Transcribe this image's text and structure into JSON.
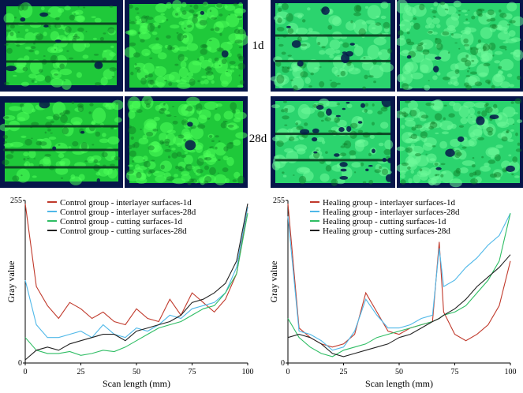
{
  "row_labels": [
    "1d",
    "28d"
  ],
  "photo_colors": {
    "background": "#06164a",
    "surface": "#1fc93a",
    "surface_bright": "#4dff5a",
    "surface_dark": "#0d7a24",
    "healing_surface": "#2bd46e",
    "healing_bright": "#6ffa9a",
    "defect": "#0a3a1f"
  },
  "chart_data": [
    {
      "type": "line",
      "panel": "control",
      "xlabel": "Scan length (mm)",
      "ylabel": "Gray value",
      "xlim": [
        0,
        100
      ],
      "ylim": [
        0,
        255
      ],
      "x_ticks": [
        "0",
        "25",
        "50",
        "75",
        "100"
      ],
      "y_ticks": [
        "0",
        "255"
      ],
      "legend_position": "top-left",
      "x": [
        0,
        5,
        10,
        15,
        20,
        25,
        30,
        35,
        40,
        45,
        50,
        55,
        60,
        65,
        70,
        75,
        80,
        85,
        90,
        95,
        100
      ],
      "series": [
        {
          "name": "Control group - interlayer surfaces-1d",
          "color": "#c0392b",
          "values": [
            250,
            120,
            90,
            70,
            95,
            85,
            70,
            80,
            65,
            60,
            85,
            70,
            65,
            100,
            75,
            110,
            95,
            80,
            100,
            140,
            245
          ]
        },
        {
          "name": "Control group - interlayer surfaces-28d",
          "color": "#4fb8e8",
          "values": [
            130,
            60,
            40,
            40,
            45,
            50,
            40,
            60,
            45,
            40,
            55,
            50,
            60,
            75,
            70,
            85,
            90,
            95,
            110,
            150,
            245
          ]
        },
        {
          "name": "Control group - cutting surfaces-1d",
          "color": "#2ebd63",
          "values": [
            40,
            20,
            15,
            15,
            18,
            12,
            15,
            20,
            18,
            25,
            35,
            45,
            55,
            60,
            65,
            75,
            85,
            90,
            110,
            140,
            235
          ]
        },
        {
          "name": "Control group - cutting surfaces-28d",
          "color": "#222222",
          "values": [
            5,
            20,
            25,
            20,
            30,
            35,
            40,
            45,
            45,
            35,
            50,
            55,
            60,
            65,
            75,
            95,
            100,
            110,
            125,
            160,
            250
          ]
        }
      ]
    },
    {
      "type": "line",
      "panel": "healing",
      "xlabel": "Scan length (mm)",
      "ylabel": "Gray value",
      "xlim": [
        0,
        100
      ],
      "ylim": [
        0,
        255
      ],
      "x_ticks": [
        "0",
        "25",
        "50",
        "75",
        "100"
      ],
      "y_ticks": [
        "0",
        "255"
      ],
      "legend_position": "top-left",
      "x": [
        0,
        5,
        10,
        15,
        20,
        25,
        30,
        35,
        40,
        45,
        50,
        55,
        60,
        65,
        68,
        70,
        75,
        80,
        85,
        90,
        95,
        100
      ],
      "series": [
        {
          "name": "Healing group - interlayer surfaces-1d",
          "color": "#c0392b",
          "values": [
            250,
            55,
            40,
            30,
            25,
            30,
            45,
            110,
            80,
            50,
            45,
            55,
            60,
            65,
            190,
            80,
            45,
            35,
            45,
            60,
            90,
            160
          ]
        },
        {
          "name": "Healing group - interlayer surfaces-28d",
          "color": "#4fb8e8",
          "values": [
            230,
            50,
            45,
            35,
            20,
            25,
            50,
            100,
            75,
            55,
            55,
            60,
            70,
            75,
            180,
            120,
            130,
            150,
            165,
            185,
            200,
            235
          ]
        },
        {
          "name": "Healing group - cutting surfaces-1d",
          "color": "#2ebd63",
          "values": [
            70,
            40,
            25,
            15,
            10,
            20,
            25,
            30,
            40,
            45,
            50,
            55,
            60,
            65,
            70,
            75,
            80,
            90,
            110,
            130,
            160,
            235
          ]
        },
        {
          "name": "Healing group - cutting surfaces-28d",
          "color": "#222222",
          "values": [
            40,
            45,
            40,
            30,
            15,
            10,
            15,
            20,
            25,
            30,
            40,
            45,
            55,
            65,
            70,
            75,
            85,
            100,
            120,
            135,
            150,
            170
          ]
        }
      ]
    }
  ]
}
